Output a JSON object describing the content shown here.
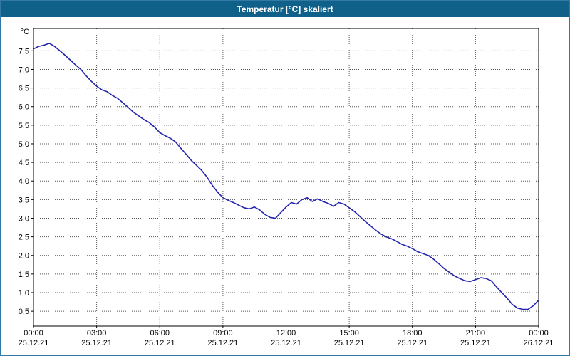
{
  "window": {
    "title": "Temperatur [°C] skaliert"
  },
  "colors": {
    "titlebar": "#10618A",
    "frame": "#3279A5",
    "line": "#2323AC",
    "grid": "#555555",
    "plot_border": "#000000",
    "plot_bg": "#FFFFFF"
  },
  "chart_data": {
    "type": "line",
    "title": "Temperatur [°C] skaliert",
    "unit_label": "°C",
    "xlabel": "",
    "ylabel": "°C",
    "ylim": [
      0.1,
      8.1
    ],
    "xlim_hours": [
      0,
      24
    ],
    "grid": true,
    "legend": "none",
    "y_ticks": [
      {
        "value": 7.5,
        "label": "7,5"
      },
      {
        "value": 7.0,
        "label": "7,0"
      },
      {
        "value": 6.5,
        "label": "6,5"
      },
      {
        "value": 6.0,
        "label": "6,0"
      },
      {
        "value": 5.5,
        "label": "5,5"
      },
      {
        "value": 5.0,
        "label": "5,0"
      },
      {
        "value": 4.5,
        "label": "4,5"
      },
      {
        "value": 4.0,
        "label": "4,0"
      },
      {
        "value": 3.5,
        "label": "3,5"
      },
      {
        "value": 3.0,
        "label": "3,0"
      },
      {
        "value": 2.5,
        "label": "2,5"
      },
      {
        "value": 2.0,
        "label": "2,0"
      },
      {
        "value": 1.5,
        "label": "1,5"
      },
      {
        "value": 1.0,
        "label": "1,0"
      },
      {
        "value": 0.5,
        "label": "0,5"
      }
    ],
    "x_ticks": [
      {
        "hour": 0,
        "time": "00:00",
        "date": "25.12.21"
      },
      {
        "hour": 3,
        "time": "03:00",
        "date": "25.12.21"
      },
      {
        "hour": 6,
        "time": "06:00",
        "date": "25.12.21"
      },
      {
        "hour": 9,
        "time": "09:00",
        "date": "25.12.21"
      },
      {
        "hour": 12,
        "time": "12:00",
        "date": "25.12.21"
      },
      {
        "hour": 15,
        "time": "15:00",
        "date": "25.12.21"
      },
      {
        "hour": 18,
        "time": "18:00",
        "date": "25.12.21"
      },
      {
        "hour": 21,
        "time": "21:00",
        "date": "25.12.21"
      },
      {
        "hour": 24,
        "time": "00:00",
        "date": "26.12.21"
      }
    ],
    "series": [
      {
        "name": "Temperatur",
        "points": [
          [
            0,
            7.55
          ],
          [
            0.25,
            7.62
          ],
          [
            0.5,
            7.65
          ],
          [
            0.75,
            7.7
          ],
          [
            1,
            7.62
          ],
          [
            1.25,
            7.5
          ],
          [
            1.5,
            7.38
          ],
          [
            1.75,
            7.25
          ],
          [
            2,
            7.12
          ],
          [
            2.25,
            7.0
          ],
          [
            2.5,
            6.83
          ],
          [
            2.75,
            6.68
          ],
          [
            3,
            6.55
          ],
          [
            3.25,
            6.45
          ],
          [
            3.5,
            6.4
          ],
          [
            3.75,
            6.3
          ],
          [
            4,
            6.22
          ],
          [
            4.25,
            6.1
          ],
          [
            4.5,
            5.98
          ],
          [
            4.75,
            5.85
          ],
          [
            5,
            5.75
          ],
          [
            5.25,
            5.65
          ],
          [
            5.5,
            5.57
          ],
          [
            5.75,
            5.45
          ],
          [
            6,
            5.3
          ],
          [
            6.25,
            5.22
          ],
          [
            6.5,
            5.15
          ],
          [
            6.75,
            5.05
          ],
          [
            7,
            4.88
          ],
          [
            7.25,
            4.72
          ],
          [
            7.5,
            4.55
          ],
          [
            7.75,
            4.42
          ],
          [
            8,
            4.28
          ],
          [
            8.25,
            4.1
          ],
          [
            8.5,
            3.88
          ],
          [
            8.75,
            3.7
          ],
          [
            9,
            3.55
          ],
          [
            9.25,
            3.48
          ],
          [
            9.5,
            3.42
          ],
          [
            9.75,
            3.35
          ],
          [
            10,
            3.28
          ],
          [
            10.25,
            3.25
          ],
          [
            10.5,
            3.3
          ],
          [
            10.75,
            3.22
          ],
          [
            11,
            3.1
          ],
          [
            11.25,
            3.02
          ],
          [
            11.5,
            3.0
          ],
          [
            11.75,
            3.15
          ],
          [
            12,
            3.3
          ],
          [
            12.25,
            3.42
          ],
          [
            12.5,
            3.38
          ],
          [
            12.75,
            3.5
          ],
          [
            13,
            3.55
          ],
          [
            13.25,
            3.45
          ],
          [
            13.5,
            3.52
          ],
          [
            13.75,
            3.45
          ],
          [
            14,
            3.4
          ],
          [
            14.25,
            3.32
          ],
          [
            14.5,
            3.42
          ],
          [
            14.75,
            3.38
          ],
          [
            15,
            3.28
          ],
          [
            15.25,
            3.18
          ],
          [
            15.5,
            3.05
          ],
          [
            15.75,
            2.92
          ],
          [
            16,
            2.8
          ],
          [
            16.25,
            2.68
          ],
          [
            16.5,
            2.58
          ],
          [
            16.75,
            2.5
          ],
          [
            17,
            2.45
          ],
          [
            17.25,
            2.38
          ],
          [
            17.5,
            2.3
          ],
          [
            17.75,
            2.25
          ],
          [
            18,
            2.18
          ],
          [
            18.25,
            2.1
          ],
          [
            18.5,
            2.05
          ],
          [
            18.75,
            2.0
          ],
          [
            19,
            1.9
          ],
          [
            19.25,
            1.78
          ],
          [
            19.5,
            1.65
          ],
          [
            19.75,
            1.55
          ],
          [
            20,
            1.45
          ],
          [
            20.25,
            1.38
          ],
          [
            20.5,
            1.32
          ],
          [
            20.75,
            1.3
          ],
          [
            21,
            1.35
          ],
          [
            21.25,
            1.4
          ],
          [
            21.5,
            1.38
          ],
          [
            21.75,
            1.32
          ],
          [
            22,
            1.15
          ],
          [
            22.25,
            1.0
          ],
          [
            22.5,
            0.85
          ],
          [
            22.75,
            0.68
          ],
          [
            23,
            0.58
          ],
          [
            23.25,
            0.55
          ],
          [
            23.5,
            0.55
          ],
          [
            23.75,
            0.65
          ],
          [
            24,
            0.8
          ]
        ]
      }
    ]
  }
}
